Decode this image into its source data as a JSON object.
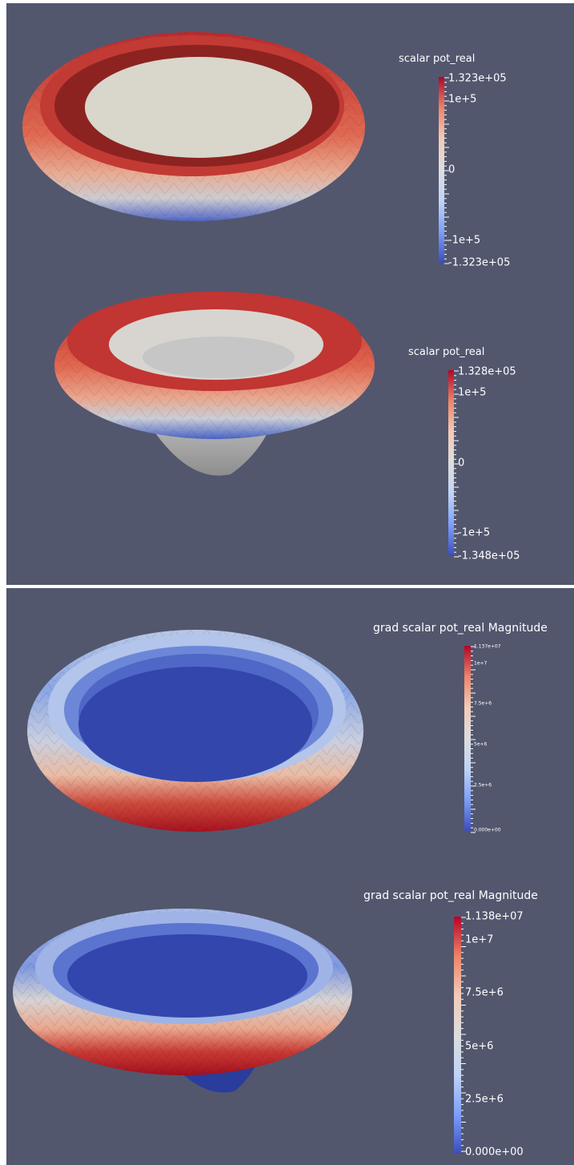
{
  "colors": {
    "background": "#52576e",
    "colormap": [
      "#3b4cc0",
      "#7b9ff9",
      "#c0d4f5",
      "#dddddd",
      "#f2cbb7",
      "#ee8468",
      "#b40426"
    ]
  },
  "panels": [
    {
      "id": "pot-top",
      "legend": {
        "title": "scalar pot_real",
        "labels": [
          "1.323e+05",
          "1e+5",
          "0",
          "-1e+5",
          "-1.323e+05"
        ]
      },
      "object_view": "top view of ring with flat inner disc"
    },
    {
      "id": "pot-side",
      "legend": {
        "title": "scalar pot_real",
        "labels": [
          "1.328e+05",
          "1e+5",
          "0",
          "-1e+5",
          "-1.348e+05"
        ]
      },
      "object_view": "oblique view of ring with cone bottom"
    },
    {
      "id": "grad-top",
      "legend": {
        "title": "grad scalar pot_real Magnitude",
        "labels": [
          "1.137e+07",
          "1e+7",
          "7.5e+6",
          "5e+6",
          "2.5e+6",
          "0.000e+00"
        ]
      },
      "object_view": "top view of ring with flat inner disc"
    },
    {
      "id": "grad-side",
      "legend": {
        "title": "grad scalar pot_real Magnitude",
        "labels": [
          "1.138e+07",
          "1e+7",
          "7.5e+6",
          "5e+6",
          "2.5e+6",
          "0.000e+00"
        ]
      },
      "object_view": "oblique view of ring with cone bottom"
    }
  ]
}
